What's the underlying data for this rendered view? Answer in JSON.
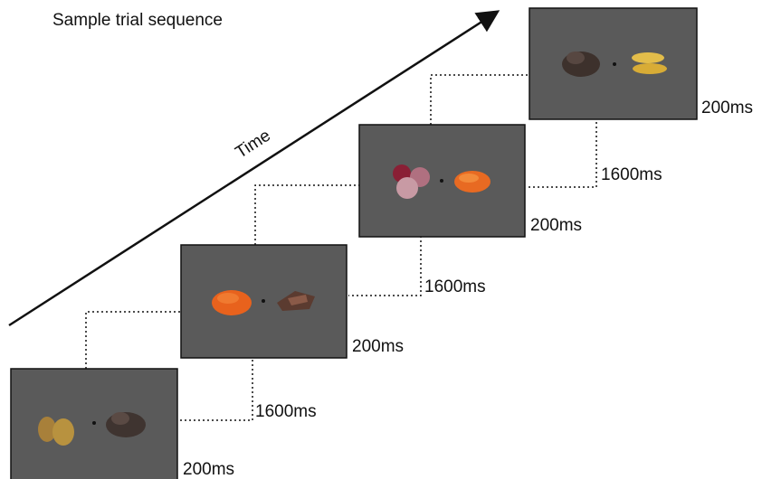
{
  "title": "Sample trial sequence",
  "axis_label": "Time",
  "screens": [
    {
      "duration": "200ms"
    },
    {
      "duration": "200ms"
    },
    {
      "duration": "200ms"
    },
    {
      "duration": "200ms"
    }
  ],
  "intervals": [
    {
      "duration": "1600ms"
    },
    {
      "duration": "1600ms"
    },
    {
      "duration": "1600ms"
    }
  ]
}
